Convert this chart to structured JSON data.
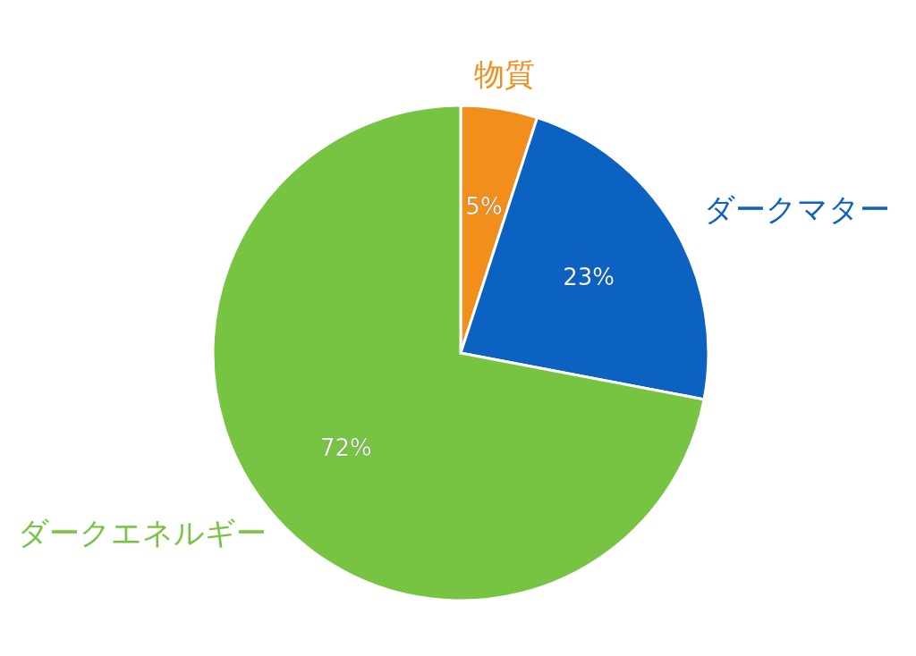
{
  "chart_data": {
    "type": "pie",
    "categories": [
      "物質",
      "ダークマター",
      "ダークエネルギー"
    ],
    "values": [
      5,
      23,
      72
    ],
    "colors": [
      "#f28e1c",
      "#0b62c0",
      "#76c442"
    ],
    "value_labels": [
      "5%",
      "23%",
      "72%"
    ]
  }
}
